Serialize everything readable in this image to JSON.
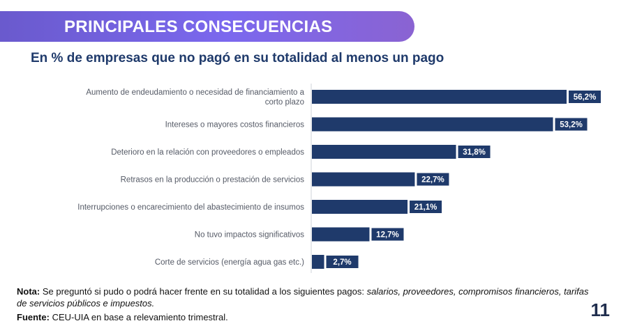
{
  "banner": {
    "title": "PRINCIPALES CONSECUENCIAS"
  },
  "colors": {
    "bar": "#1f3a6b",
    "label_box": "#1f3a6b",
    "banner": "#7b68ee",
    "axis": "#cfd3da"
  },
  "chart_data": {
    "type": "bar",
    "orientation": "horizontal",
    "title": "En % de empresas que no pagó en su totalidad al menos un pago",
    "categories": [
      [
        "Aumento de endeudamiento o necesidad de financiamiento a",
        "corto plazo"
      ],
      [
        "Intereses o mayores costos financieros"
      ],
      [
        "Deterioro en la relación con proveedores o empleados"
      ],
      [
        "Retrasos en la producción o prestación de servicios"
      ],
      [
        "Interrupciones o encarecimiento del abastecimiento de insumos"
      ],
      [
        "No tuvo impactos significativos"
      ],
      [
        "Corte de servicios (energía agua gas etc.)"
      ]
    ],
    "values": [
      56.2,
      53.2,
      31.8,
      22.7,
      21.1,
      12.7,
      2.7
    ],
    "value_labels": [
      "56,2%",
      "53,2%",
      "31,8%",
      "22,7%",
      "21,1%",
      "12,7%",
      "2,7%"
    ],
    "xlim": [
      0,
      60
    ],
    "grid": false
  },
  "note": {
    "label": "Nota:",
    "text": "Se preguntó si pudo o podrá hacer frente en su totalidad a los siguientes pagos:",
    "italic": "salarios, proveedores, compromisos financieros, tarifas de servicios públicos e impuestos."
  },
  "source": {
    "label": "Fuente:",
    "text": "CEU-UIA en base a relevamiento trimestral."
  },
  "page_number": "11"
}
